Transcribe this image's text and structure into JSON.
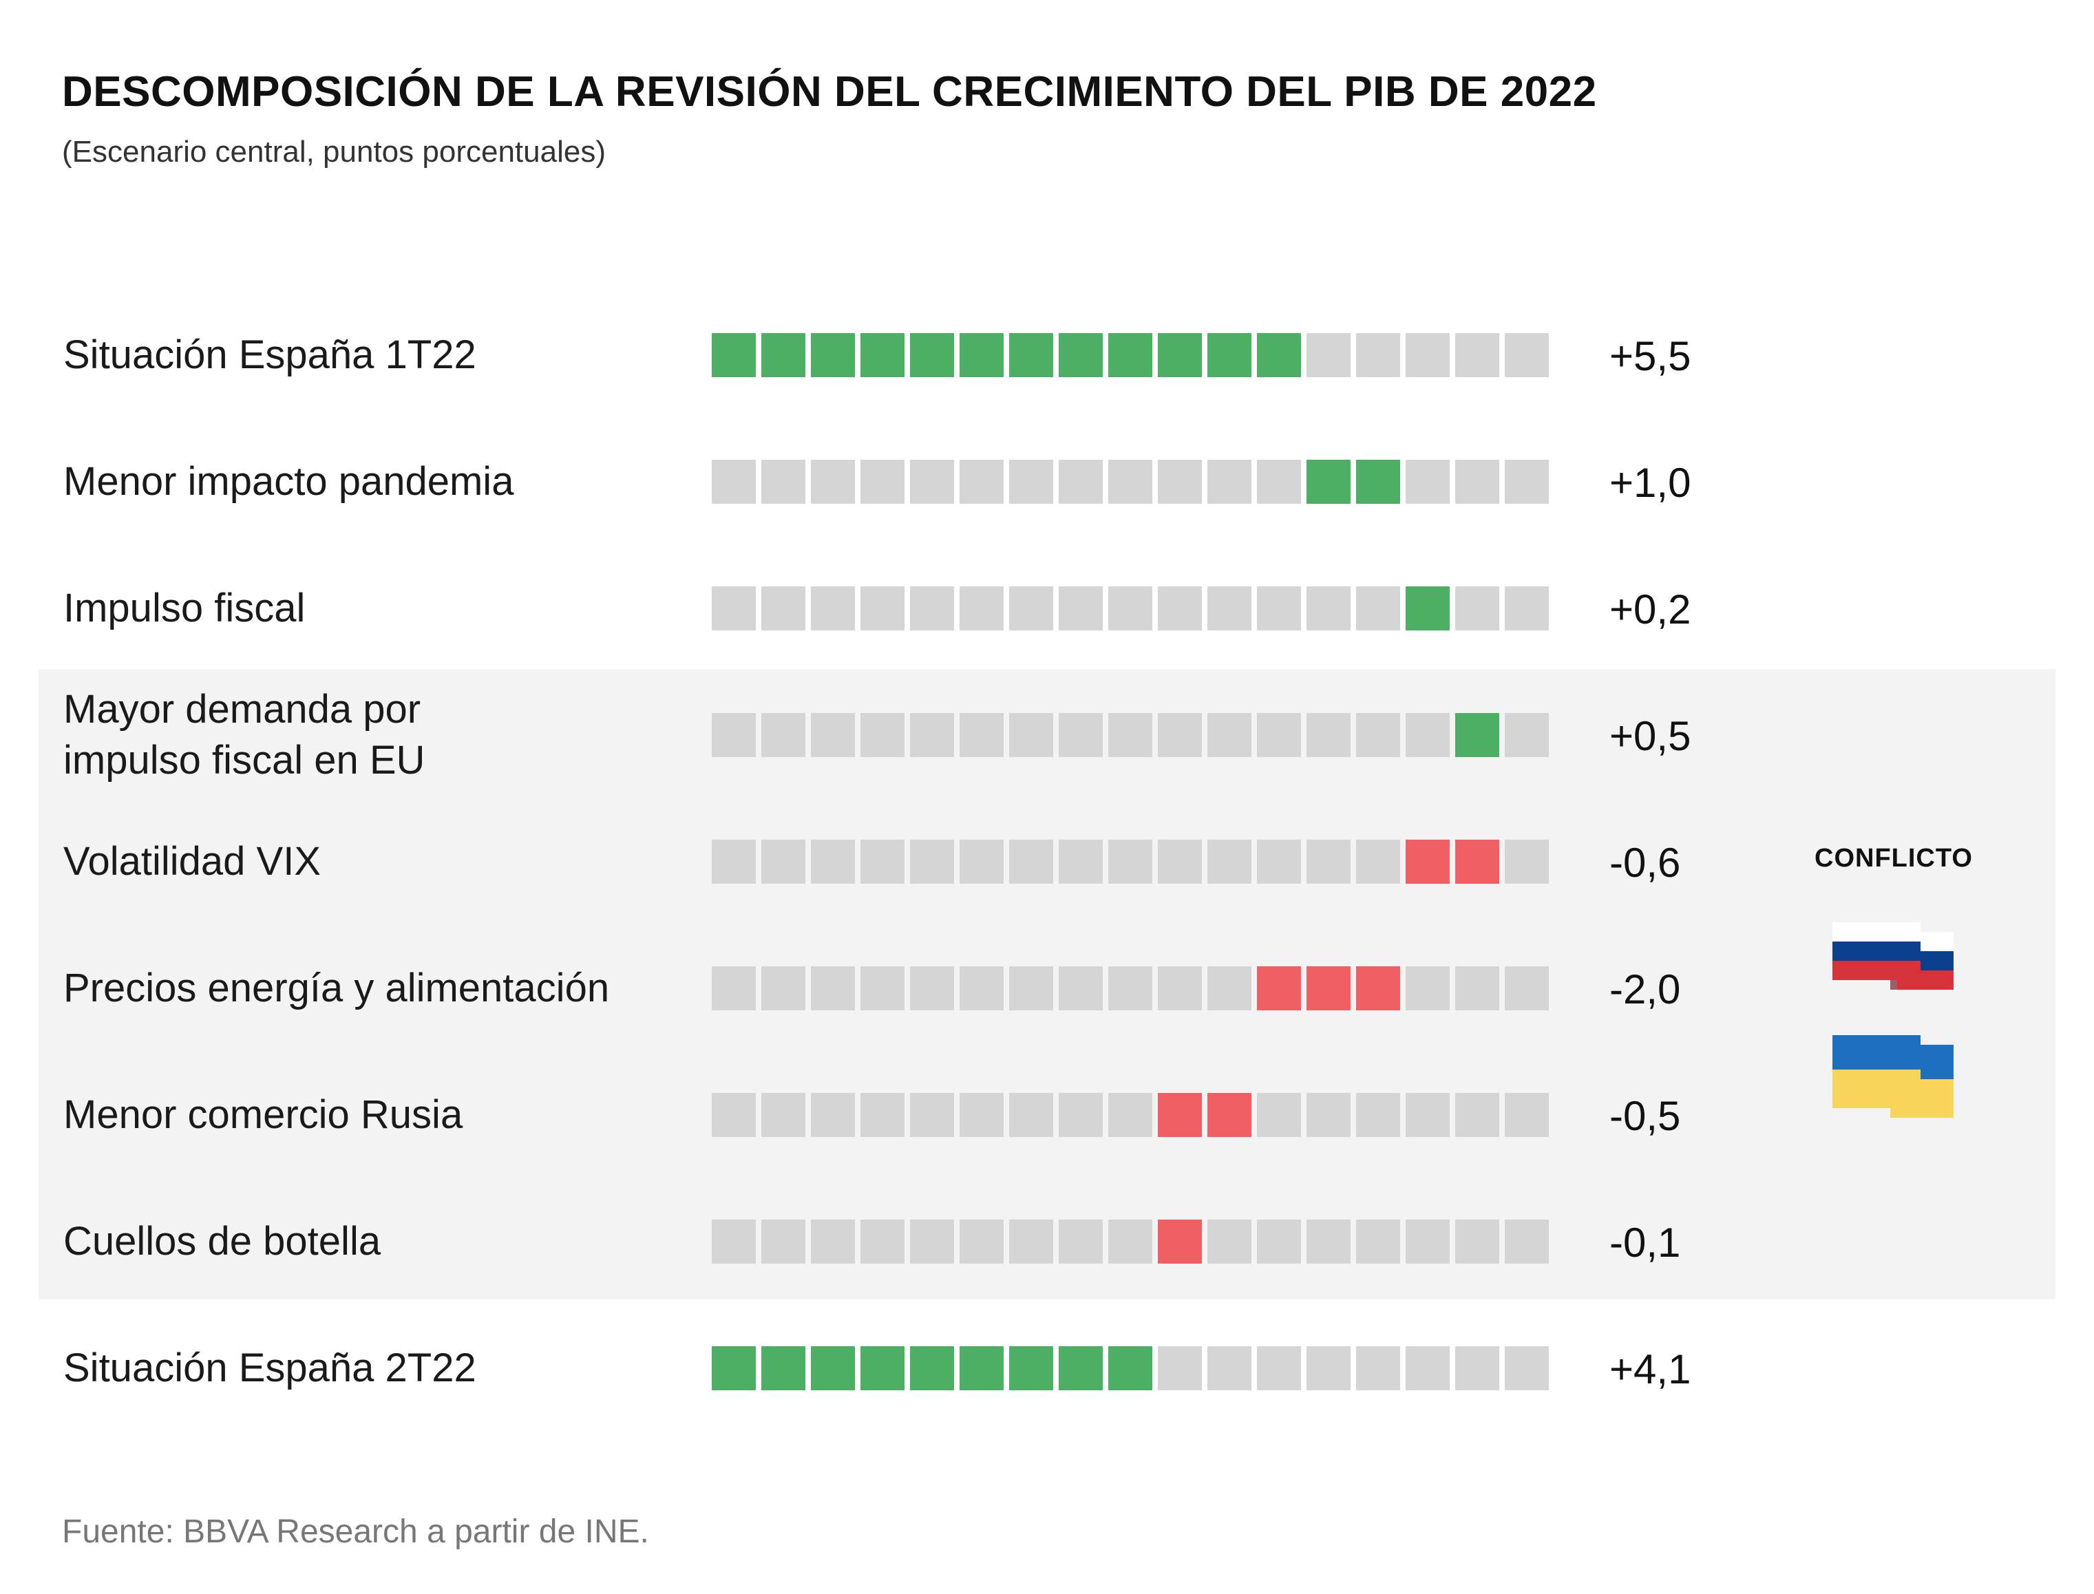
{
  "chart_data": {
    "type": "table",
    "title": "DESCOMPOSICIÓN DE LA REVISIÓN DEL CRECIMIENTO DEL PIB DE 2022",
    "subtitle": "(Escenario central, puntos porcentuales)",
    "total_blocks": 17,
    "rows": [
      {
        "label": [
          "Situación España 1T22"
        ],
        "value": "+5,5",
        "start": 0,
        "count": 12,
        "color": "#4caf63",
        "highlighted": false
      },
      {
        "label": [
          "Menor impacto pandemia"
        ],
        "value": "+1,0",
        "start": 12,
        "count": 2,
        "color": "#4caf63",
        "highlighted": false
      },
      {
        "label": [
          "Impulso fiscal"
        ],
        "value": "+0,2",
        "start": 14,
        "count": 1,
        "color": "#4caf63",
        "highlighted": false
      },
      {
        "label": [
          "Mayor demanda por",
          "impulso fiscal en EU"
        ],
        "value": "+0,5",
        "start": 15,
        "count": 1,
        "color": "#4caf63",
        "highlighted": true
      },
      {
        "label": [
          "Volatilidad VIX"
        ],
        "value": "-0,6",
        "start": 14,
        "count": 2,
        "color": "#f05f63",
        "highlighted": true
      },
      {
        "label": [
          "Precios energía y alimentación"
        ],
        "value": "-2,0",
        "start": 11,
        "count": 3,
        "color": "#f05f63",
        "highlighted": true
      },
      {
        "label": [
          "Menor comercio Rusia"
        ],
        "value": "-0,5",
        "start": 9,
        "count": 2,
        "color": "#f05f63",
        "highlighted": true
      },
      {
        "label": [
          "Cuellos de botella"
        ],
        "value": "-0,1",
        "start": 9,
        "count": 1,
        "color": "#f05f63",
        "highlighted": true
      },
      {
        "label": [
          "Situación España 2T22"
        ],
        "value": "+4,1",
        "start": 0,
        "count": 9,
        "color": "#4caf63",
        "highlighted": false
      }
    ],
    "annotation": "CONFLICTO"
  },
  "source": "Fuente: BBVA Research a partir de INE.",
  "colors": {
    "positive": "#4caf63",
    "negative": "#f05f63",
    "empty": "#d5d5d5",
    "band": "#f3f3f3",
    "russia_white": "#ffffff",
    "russia_blue": "#0d3f8f",
    "russia_red": "#d5323a",
    "ukraine_blue": "#1f6fbf",
    "ukraine_yellow": "#f7d45a"
  }
}
